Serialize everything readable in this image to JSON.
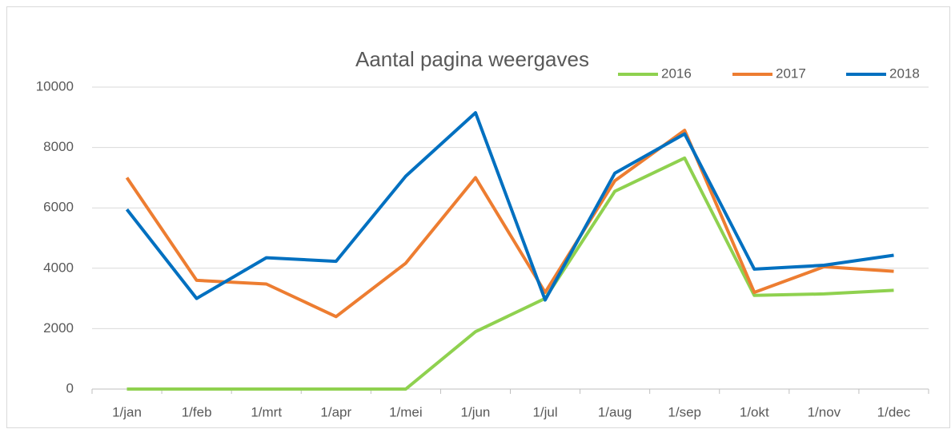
{
  "chart_data": {
    "type": "line",
    "title": "Aantal pagina weergaves",
    "categories": [
      "1/jan",
      "1/feb",
      "1/mrt",
      "1/apr",
      "1/mei",
      "1/jun",
      "1/jul",
      "1/aug",
      "1/sep",
      "1/okt",
      "1/nov",
      "1/dec"
    ],
    "series": [
      {
        "name": "2016",
        "color": "#8fd14f",
        "values": [
          0,
          0,
          0,
          0,
          0,
          1900,
          3000,
          6550,
          7650,
          3100,
          3150,
          3270
        ]
      },
      {
        "name": "2017",
        "color": "#ed7d31",
        "values": [
          7000,
          3600,
          3480,
          2400,
          4170,
          7000,
          3200,
          6900,
          8570,
          3200,
          4050,
          3900
        ]
      },
      {
        "name": "2018",
        "color": "#0070c0",
        "values": [
          5950,
          3000,
          4350,
          4230,
          7050,
          9150,
          2950,
          7150,
          8450,
          3970,
          4100,
          4430
        ]
      }
    ],
    "ylim": [
      0,
      10000
    ],
    "yticks": [
      0,
      2000,
      4000,
      6000,
      8000,
      10000
    ],
    "grid": true,
    "legend": "top-right"
  }
}
